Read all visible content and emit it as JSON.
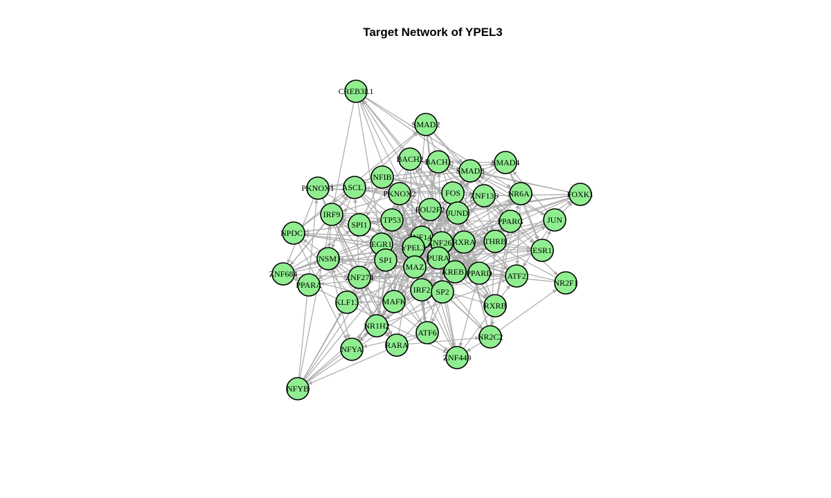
{
  "title": "Target Network of YPEL3",
  "colors": {
    "node_fill": "#90ee90",
    "node_stroke": "#000000",
    "edge": "#a9a9a9"
  },
  "nodes": [
    {
      "id": "CREB3L1",
      "label": "CREB3L1"
    },
    {
      "id": "SMAD2",
      "label": "SMAD2"
    },
    {
      "id": "BACH2",
      "label": "BACH2"
    },
    {
      "id": "BACH1",
      "label": "BACH1"
    },
    {
      "id": "SMAD3",
      "label": "SMAD3"
    },
    {
      "id": "SMAD4",
      "label": "SMAD4"
    },
    {
      "id": "NFIB",
      "label": "NFIB"
    },
    {
      "id": "PKNOX1",
      "label": "PKNOX1"
    },
    {
      "id": "ASCL1",
      "label": "ASCL1"
    },
    {
      "id": "PKNOX2",
      "label": "PKNOX2"
    },
    {
      "id": "FOS",
      "label": "FOS"
    },
    {
      "id": "ZNF136",
      "label": "ZNF136"
    },
    {
      "id": "NR6A1",
      "label": "NR6A1"
    },
    {
      "id": "FOXK1",
      "label": "FOXK1"
    },
    {
      "id": "IRF9",
      "label": "IRF9"
    },
    {
      "id": "POU2F2",
      "label": "POU2F2"
    },
    {
      "id": "JUND",
      "label": "JUND"
    },
    {
      "id": "TP53",
      "label": "TP53"
    },
    {
      "id": "SPI1",
      "label": "SPI1"
    },
    {
      "id": "PPARG",
      "label": "PPARG"
    },
    {
      "id": "JUN",
      "label": "JUN"
    },
    {
      "id": "NPDC1",
      "label": "NPDC1"
    },
    {
      "id": "ZNF148",
      "label": "ZNF148"
    },
    {
      "id": "EGR1",
      "label": "EGR1"
    },
    {
      "id": "YPEL3",
      "label": "YPEL3"
    },
    {
      "id": "ZNF263",
      "label": "ZNF263"
    },
    {
      "id": "RXRA",
      "label": "RXRA"
    },
    {
      "id": "THRB",
      "label": "THRB"
    },
    {
      "id": "ESR1",
      "label": "ESR1"
    },
    {
      "id": "INSM1",
      "label": "INSM1"
    },
    {
      "id": "SP1",
      "label": "SP1"
    },
    {
      "id": "PURA",
      "label": "PURA"
    },
    {
      "id": "MAZ",
      "label": "MAZ"
    },
    {
      "id": "ZNF684",
      "label": "ZNF684"
    },
    {
      "id": "KREB1",
      "label": "KREB1"
    },
    {
      "id": "PPARD",
      "label": "PPARD"
    },
    {
      "id": "ATF2",
      "label": "ATF2"
    },
    {
      "id": "ZNF274",
      "label": "ZNF274"
    },
    {
      "id": "PPARA",
      "label": "PPARA"
    },
    {
      "id": "NR2F1",
      "label": "NR2F1"
    },
    {
      "id": "IRF2",
      "label": "IRF2"
    },
    {
      "id": "SP2",
      "label": "SP2"
    },
    {
      "id": "KLF13",
      "label": "KLF13"
    },
    {
      "id": "MAFK",
      "label": "MAFK"
    },
    {
      "id": "RXRB",
      "label": "RXRB"
    },
    {
      "id": "NR1H2",
      "label": "NR1H2"
    },
    {
      "id": "ATF6",
      "label": "ATF6"
    },
    {
      "id": "NR2C2",
      "label": "NR2C2"
    },
    {
      "id": "RARA",
      "label": "RARA"
    },
    {
      "id": "NFYA",
      "label": "NFYA"
    },
    {
      "id": "ZNF449",
      "label": "ZNF449"
    },
    {
      "id": "NFYB",
      "label": "NFYB"
    }
  ]
}
